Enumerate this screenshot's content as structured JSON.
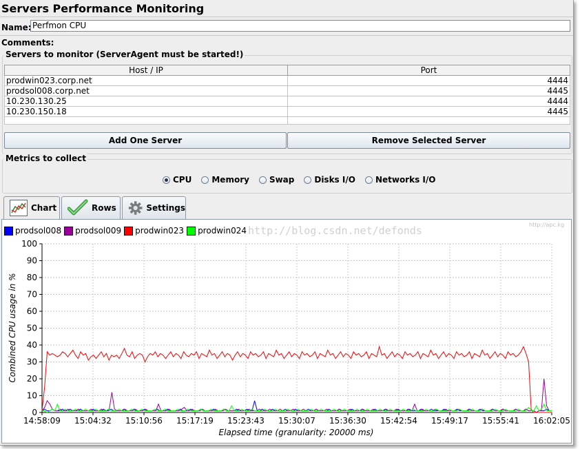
{
  "window": {
    "title": "Servers Performance Monitoring"
  },
  "name": {
    "label": "Name:",
    "value": "Perfmon CPU"
  },
  "comments": {
    "label": "Comments:"
  },
  "servers": {
    "group_title": "Servers to monitor (ServerAgent must be started!)",
    "columns": [
      "Host / IP",
      "Port"
    ],
    "rows": [
      {
        "host": "prodwin023.corp.net",
        "port": "4444"
      },
      {
        "host": "prodsol008.corp.net",
        "port": "4445"
      },
      {
        "host": "10.230.130.25",
        "port": "4444"
      },
      {
        "host": "10.230.150.18",
        "port": "4445"
      }
    ],
    "add_button": "Add One Server",
    "remove_button": "Remove Selected Server"
  },
  "metrics": {
    "group_title": "Metrics to collect",
    "options": [
      "CPU",
      "Memory",
      "Swap",
      "Disks I/O",
      "Networks I/O"
    ],
    "selected": "CPU"
  },
  "tabs": [
    {
      "label": "Chart",
      "icon": "chart-icon",
      "active": true
    },
    {
      "label": "Rows",
      "icon": "checkmark-icon",
      "active": false
    },
    {
      "label": "Settings",
      "icon": "gear-icon",
      "active": false
    }
  ],
  "watermark": "http://blog.csdn.net/defonds",
  "watermark_small": "http://apc.kg",
  "chart_data": {
    "type": "line",
    "ylabel": "Combined CPU usage in %",
    "xlabel": "Elapsed time (granularity: 20000 ms)",
    "ylim": [
      0,
      100
    ],
    "yticks": [
      0,
      10,
      20,
      30,
      40,
      50,
      60,
      70,
      80,
      90,
      100
    ],
    "xticks": [
      "14:58:09",
      "15:04:32",
      "15:10:56",
      "15:17:19",
      "15:23:43",
      "15:30:07",
      "15:36:30",
      "15:42:54",
      "15:49:17",
      "15:55:41",
      "16:02:05"
    ],
    "x_start": "14:58:09",
    "x_end": "16:02:05",
    "grid": true,
    "legend_position": "top-left",
    "series": [
      {
        "name": "prodsol008",
        "color": "#0000ff",
        "values": [
          1,
          2,
          1,
          1,
          2,
          1,
          1,
          1,
          2,
          1,
          1,
          2,
          1,
          1,
          1,
          2,
          1,
          1,
          1,
          1,
          2,
          1,
          1,
          1,
          2,
          1,
          1,
          2,
          1,
          1,
          1,
          1,
          2,
          1,
          1,
          1,
          2,
          1,
          1,
          1,
          2,
          1,
          1,
          1,
          1,
          2,
          1,
          1,
          1,
          2,
          1,
          1,
          1,
          1,
          2,
          1,
          1,
          1,
          2,
          1,
          1,
          1,
          2,
          1,
          1,
          1,
          1,
          2,
          1,
          1,
          1,
          2,
          1,
          1,
          1,
          1,
          2,
          1,
          1,
          1,
          2,
          1,
          1,
          7,
          1,
          1,
          2,
          1,
          1,
          1,
          2,
          1,
          1,
          1,
          1,
          2,
          1,
          1,
          1,
          2,
          1,
          1,
          1,
          1,
          2,
          1,
          1,
          2,
          1,
          1,
          1,
          1,
          2,
          1,
          1,
          1,
          2,
          1,
          1,
          1,
          1,
          2,
          1,
          1,
          1,
          2,
          1,
          1,
          1,
          1,
          2,
          1,
          1,
          1,
          2,
          1,
          1,
          1,
          1,
          2,
          1,
          1,
          1,
          2,
          1,
          1,
          1,
          1,
          2,
          1,
          1,
          1,
          2,
          1,
          1,
          1,
          1,
          2,
          1,
          1,
          1,
          1,
          2,
          1,
          1,
          1,
          1,
          2,
          1,
          1,
          1,
          2,
          1,
          1,
          1,
          1,
          2,
          1,
          1,
          1,
          2,
          1,
          1,
          1,
          1,
          2,
          1,
          1,
          1,
          2,
          1,
          1,
          1,
          0,
          1,
          1,
          1,
          2,
          1,
          1
        ]
      },
      {
        "name": "prodsol009",
        "color": "#990099",
        "values": [
          1,
          3,
          7,
          5,
          2,
          1,
          1,
          2,
          1,
          1,
          2,
          1,
          1,
          1,
          2,
          1,
          1,
          1,
          1,
          2,
          1,
          1,
          1,
          2,
          1,
          1,
          2,
          12,
          2,
          1,
          1,
          1,
          2,
          1,
          1,
          1,
          2,
          1,
          1,
          1,
          2,
          1,
          1,
          1,
          1,
          5,
          1,
          1,
          1,
          2,
          1,
          1,
          1,
          1,
          2,
          3,
          1,
          1,
          2,
          1,
          1,
          1,
          2,
          1,
          1,
          1,
          1,
          2,
          1,
          1,
          1,
          2,
          1,
          1,
          1,
          1,
          2,
          1,
          1,
          1,
          2,
          1,
          1,
          1,
          2,
          1,
          1,
          1,
          2,
          1,
          1,
          1,
          2,
          1,
          1,
          1,
          1,
          2,
          1,
          1,
          1,
          2,
          1,
          1,
          1,
          1,
          2,
          1,
          1,
          1,
          2,
          1,
          1,
          1,
          1,
          2,
          1,
          1,
          1,
          2,
          1,
          1,
          1,
          1,
          2,
          1,
          1,
          1,
          2,
          1,
          1,
          1,
          1,
          2,
          1,
          1,
          1,
          2,
          1,
          1,
          1,
          1,
          2,
          1,
          5,
          1,
          1,
          2,
          1,
          1,
          1,
          1,
          2,
          1,
          1,
          1,
          2,
          1,
          1,
          1,
          1,
          2,
          1,
          1,
          1,
          2,
          1,
          1,
          1,
          1,
          2,
          1,
          1,
          1,
          2,
          1,
          1,
          1,
          2,
          1,
          1,
          1,
          1,
          2,
          1,
          1,
          1,
          2,
          1,
          1,
          1,
          0,
          1,
          1,
          20,
          4,
          1,
          1
        ]
      },
      {
        "name": "prodwin023",
        "color": "#ff0000",
        "values": [
          1,
          15,
          36,
          34,
          35,
          34,
          33,
          34,
          36,
          35,
          33,
          35,
          37,
          34,
          32,
          36,
          34,
          35,
          31,
          33,
          34,
          32,
          34,
          36,
          33,
          35,
          31,
          34,
          33,
          34,
          32,
          35,
          38,
          34,
          33,
          36,
          32,
          34,
          35,
          34,
          30,
          33,
          35,
          34,
          36,
          33,
          35,
          34,
          32,
          34,
          36,
          33,
          35,
          34,
          32,
          36,
          34,
          33,
          35,
          34,
          36,
          32,
          35,
          34,
          33,
          37,
          34,
          35,
          32,
          34,
          36,
          33,
          35,
          34,
          31,
          34,
          36,
          33,
          35,
          34,
          32,
          36,
          34,
          35,
          33,
          34,
          36,
          32,
          35,
          34,
          33,
          37,
          34,
          35,
          32,
          34,
          36,
          33,
          35,
          34,
          32,
          36,
          34,
          35,
          33,
          34,
          36,
          32,
          35,
          34,
          33,
          37,
          34,
          35,
          32,
          34,
          36,
          33,
          35,
          34,
          32,
          36,
          34,
          35,
          33,
          34,
          36,
          32,
          35,
          34,
          33,
          39,
          34,
          35,
          32,
          34,
          36,
          33,
          35,
          34,
          32,
          36,
          34,
          35,
          33,
          34,
          36,
          32,
          35,
          34,
          33,
          37,
          34,
          35,
          32,
          34,
          36,
          33,
          35,
          34,
          32,
          36,
          34,
          35,
          33,
          34,
          36,
          32,
          35,
          34,
          33,
          37,
          34,
          35,
          32,
          34,
          36,
          33,
          35,
          34,
          32,
          36,
          34,
          35,
          33,
          34,
          36,
          39,
          35,
          30,
          2,
          0,
          0,
          0,
          0,
          0,
          0,
          0,
          0
        ]
      },
      {
        "name": "prodwin024",
        "color": "#00ff00",
        "values": [
          1,
          1,
          0,
          1,
          2,
          1,
          5,
          1,
          1,
          2,
          1,
          1,
          1,
          2,
          1,
          1,
          1,
          2,
          1,
          1,
          1,
          2,
          1,
          1,
          1,
          1,
          2,
          1,
          1,
          1,
          2,
          1,
          1,
          1,
          1,
          2,
          1,
          1,
          1,
          2,
          1,
          1,
          1,
          1,
          2,
          1,
          1,
          1,
          2,
          1,
          1,
          1,
          1,
          2,
          1,
          1,
          1,
          2,
          1,
          1,
          1,
          1,
          2,
          1,
          1,
          1,
          2,
          1,
          1,
          1,
          1,
          2,
          1,
          1,
          4,
          1,
          1,
          1,
          2,
          1,
          1,
          1,
          2,
          1,
          1,
          1,
          1,
          2,
          1,
          1,
          1,
          2,
          1,
          1,
          1,
          1,
          2,
          1,
          1,
          1,
          2,
          1,
          1,
          1,
          1,
          2,
          1,
          1,
          1,
          2,
          1,
          1,
          1,
          1,
          2,
          1,
          1,
          1,
          2,
          1,
          1,
          1,
          1,
          2,
          1,
          1,
          1,
          2,
          1,
          1,
          1,
          1,
          2,
          1,
          1,
          1,
          2,
          1,
          1,
          1,
          1,
          2,
          1,
          1,
          1,
          2,
          1,
          1,
          1,
          1,
          2,
          1,
          1,
          1,
          2,
          1,
          1,
          1,
          1,
          2,
          1,
          1,
          1,
          2,
          1,
          1,
          1,
          1,
          2,
          1,
          1,
          1,
          2,
          1,
          1,
          1,
          1,
          2,
          1,
          1,
          1,
          2,
          1,
          1,
          1,
          1,
          2,
          1,
          1,
          1,
          3,
          1,
          1,
          4,
          1,
          2,
          5,
          1,
          1,
          1
        ]
      }
    ]
  }
}
